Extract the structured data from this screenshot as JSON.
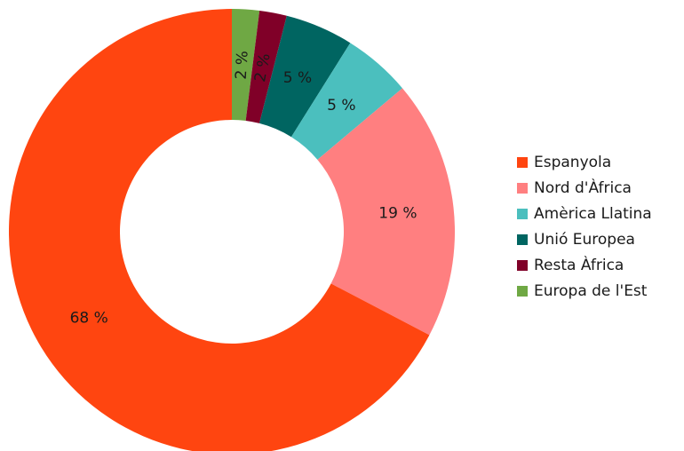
{
  "chart_data": {
    "type": "pie",
    "variant": "donut",
    "legend_position": "right",
    "title": "",
    "series": [
      {
        "name": "Espanyola",
        "value": 68,
        "label": "68 %",
        "color": "#ff4510"
      },
      {
        "name": "Nord d'Àfrica",
        "value": 19,
        "label": "19 %",
        "color": "#ff7f80"
      },
      {
        "name": "Amèrica Llatina",
        "value": 5,
        "label": "5 %",
        "color": "#4bbfbe"
      },
      {
        "name": "Unió Europea",
        "value": 5,
        "label": "5 %",
        "color": "#006561"
      },
      {
        "name": "Resta Àfrica",
        "value": 2,
        "label": "2 %",
        "color": "#800028"
      },
      {
        "name": "Europa de l'Est",
        "value": 2,
        "label": "2 %",
        "color": "#6fa844"
      }
    ],
    "draw_order": [
      "Europa de l'Est",
      "Resta Àfrica",
      "Unió Europea",
      "Amèrica Llatina",
      "Nord d'Àfrica",
      "Espanyola"
    ]
  }
}
